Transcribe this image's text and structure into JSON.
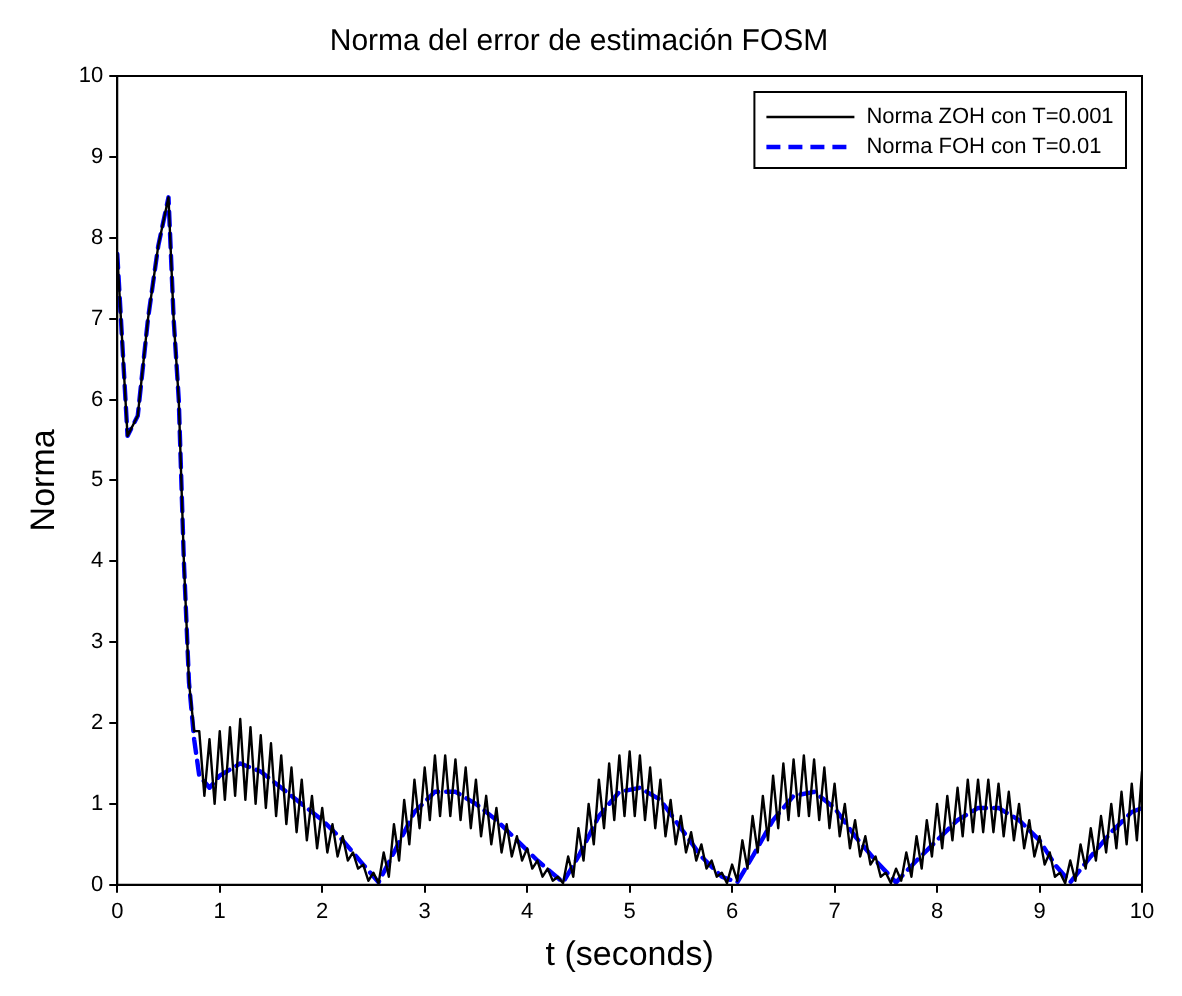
{
  "chart_data": {
    "type": "line",
    "title": "Norma del error de estimación FOSM",
    "xlabel": "t (seconds)",
    "ylabel": "Norma",
    "xlim": [
      0,
      10
    ],
    "xticks": [
      0,
      1,
      2,
      3,
      4,
      5,
      6,
      7,
      8,
      9,
      10
    ],
    "ylim": [
      0,
      10
    ],
    "yticks": [
      0,
      1,
      2,
      3,
      4,
      5,
      6,
      7,
      8,
      9,
      10
    ],
    "grid": false,
    "legend": "top right",
    "marker": "none",
    "series": [
      {
        "name": "Norma ZOH con T=0.001",
        "color": "#000000",
        "line_style": "solid",
        "x": [
          0,
          0.1,
          0.2,
          0.3,
          0.4,
          0.5,
          0.55,
          0.6,
          0.65,
          0.7,
          0.75,
          0.8,
          0.85,
          0.9,
          0.95,
          1.0,
          1.05,
          1.1,
          1.15,
          1.2,
          1.25,
          1.3,
          1.35,
          1.4,
          1.45,
          1.5,
          1.55,
          1.6,
          1.65,
          1.7,
          1.75,
          1.8,
          1.85,
          1.9,
          1.95,
          2.0,
          2.05,
          2.1,
          2.15,
          2.2,
          2.25,
          2.3,
          2.35,
          2.4,
          2.45,
          2.5,
          2.55,
          2.6,
          2.65,
          2.7,
          2.75,
          2.8,
          2.85,
          2.9,
          2.95,
          3.0,
          3.05,
          3.1,
          3.15,
          3.2,
          3.25,
          3.3,
          3.35,
          3.4,
          3.45,
          3.5,
          3.55,
          3.6,
          3.65,
          3.7,
          3.75,
          3.8,
          3.85,
          3.9,
          3.95,
          4.0,
          4.05,
          4.1,
          4.15,
          4.2,
          4.25,
          4.3,
          4.35,
          4.4,
          4.45,
          4.5,
          4.55,
          4.6,
          4.65,
          4.7,
          4.75,
          4.8,
          4.85,
          4.9,
          4.95,
          5.0,
          5.05,
          5.1,
          5.15,
          5.2,
          5.25,
          5.3,
          5.35,
          5.4,
          5.45,
          5.5,
          5.55,
          5.6,
          5.65,
          5.7,
          5.75,
          5.8,
          5.85,
          5.9,
          5.95,
          6.0,
          6.05,
          6.1,
          6.15,
          6.2,
          6.25,
          6.3,
          6.35,
          6.4,
          6.45,
          6.5,
          6.55,
          6.6,
          6.65,
          6.7,
          6.75,
          6.8,
          6.85,
          6.9,
          6.95,
          7.0,
          7.05,
          7.1,
          7.15,
          7.2,
          7.25,
          7.3,
          7.35,
          7.4,
          7.45,
          7.5,
          7.55,
          7.6,
          7.65,
          7.7,
          7.75,
          7.8,
          7.85,
          7.9,
          7.95,
          8.0,
          8.05,
          8.1,
          8.15,
          8.2,
          8.25,
          8.3,
          8.35,
          8.4,
          8.45,
          8.5,
          8.55,
          8.6,
          8.65,
          8.7,
          8.75,
          8.8,
          8.85,
          8.9,
          8.95,
          9.0,
          9.05,
          9.1,
          9.15,
          9.2,
          9.25,
          9.3,
          9.35,
          9.4,
          9.45,
          9.5,
          9.55,
          9.6,
          9.65,
          9.7,
          9.75,
          9.8,
          9.85,
          9.9,
          9.95,
          10.0
        ],
        "values": [
          7.8,
          5.55,
          5.8,
          7.0,
          7.9,
          8.5,
          7.0,
          6.0,
          4.0,
          2.5,
          1.9,
          1.9,
          1.1,
          1.8,
          1.0,
          1.9,
          1.05,
          1.95,
          1.1,
          2.05,
          1.05,
          1.95,
          1.0,
          1.85,
          0.95,
          1.75,
          0.85,
          1.6,
          0.75,
          1.45,
          0.65,
          1.3,
          0.55,
          1.1,
          0.45,
          0.95,
          0.4,
          0.75,
          0.35,
          0.6,
          0.3,
          0.4,
          0.2,
          0.25,
          0.05,
          0.15,
          0.02,
          0.4,
          0.1,
          0.75,
          0.3,
          1.05,
          0.5,
          1.3,
          0.7,
          1.45,
          0.8,
          1.6,
          0.85,
          1.6,
          0.85,
          1.55,
          0.8,
          1.45,
          0.7,
          1.3,
          0.6,
          1.1,
          0.5,
          0.95,
          0.4,
          0.75,
          0.35,
          0.6,
          0.3,
          0.45,
          0.2,
          0.3,
          0.1,
          0.2,
          0.05,
          0.1,
          0.02,
          0.35,
          0.1,
          0.7,
          0.3,
          1.0,
          0.5,
          1.3,
          0.7,
          1.5,
          0.8,
          1.6,
          0.85,
          1.65,
          0.85,
          1.6,
          0.8,
          1.45,
          0.7,
          1.3,
          0.6,
          1.05,
          0.5,
          0.85,
          0.4,
          0.65,
          0.3,
          0.5,
          0.2,
          0.3,
          0.1,
          0.15,
          0.02,
          0.25,
          0.05,
          0.55,
          0.2,
          0.85,
          0.4,
          1.1,
          0.55,
          1.35,
          0.7,
          1.5,
          0.8,
          1.55,
          0.85,
          1.6,
          0.85,
          1.55,
          0.8,
          1.45,
          0.7,
          1.25,
          0.6,
          1.0,
          0.45,
          0.8,
          0.35,
          0.6,
          0.25,
          0.35,
          0.1,
          0.15,
          0.02,
          0.2,
          0.05,
          0.4,
          0.1,
          0.6,
          0.2,
          0.8,
          0.35,
          1.0,
          0.45,
          1.1,
          0.55,
          1.2,
          0.6,
          1.3,
          0.65,
          1.3,
          0.65,
          1.3,
          0.65,
          1.25,
          0.6,
          1.15,
          0.55,
          1.0,
          0.45,
          0.8,
          0.35,
          0.6,
          0.25,
          0.4,
          0.1,
          0.15,
          0.02,
          0.3,
          0.05,
          0.5,
          0.2,
          0.7,
          0.3,
          0.85,
          0.4,
          1.0,
          0.45,
          1.15,
          0.5,
          1.25,
          0.55,
          1.4
        ]
      },
      {
        "name": "Norma FOH con T=0.01",
        "color": "#0000ff",
        "line_style": "dashed",
        "x": [
          0,
          0.1,
          0.2,
          0.3,
          0.4,
          0.5,
          0.55,
          0.6,
          0.65,
          0.7,
          0.75,
          0.8,
          0.9,
          1.0,
          1.2,
          1.4,
          1.6,
          1.8,
          2.0,
          2.2,
          2.4,
          2.55,
          2.7,
          2.9,
          3.1,
          3.3,
          3.5,
          3.7,
          3.9,
          4.1,
          4.35,
          4.5,
          4.7,
          4.9,
          5.1,
          5.3,
          5.5,
          5.7,
          5.9,
          6.05,
          6.2,
          6.4,
          6.6,
          6.8,
          7.0,
          7.2,
          7.4,
          7.6,
          7.8,
          8.0,
          8.2,
          8.4,
          8.6,
          8.8,
          9.0,
          9.15,
          9.3,
          9.5,
          9.7,
          9.9,
          10.0
        ],
        "values": [
          7.8,
          5.55,
          5.8,
          7.0,
          7.9,
          8.5,
          7.0,
          6.0,
          4.0,
          2.5,
          1.8,
          1.35,
          1.2,
          1.35,
          1.5,
          1.4,
          1.2,
          1.0,
          0.8,
          0.55,
          0.25,
          0.03,
          0.4,
          0.9,
          1.15,
          1.15,
          1.0,
          0.8,
          0.55,
          0.3,
          0.03,
          0.35,
          0.85,
          1.15,
          1.2,
          1.05,
          0.7,
          0.35,
          0.1,
          0.03,
          0.35,
          0.8,
          1.1,
          1.15,
          0.95,
          0.6,
          0.3,
          0.03,
          0.3,
          0.55,
          0.8,
          0.95,
          0.95,
          0.8,
          0.55,
          0.25,
          0.03,
          0.35,
          0.65,
          0.9,
          0.95
        ]
      }
    ]
  }
}
